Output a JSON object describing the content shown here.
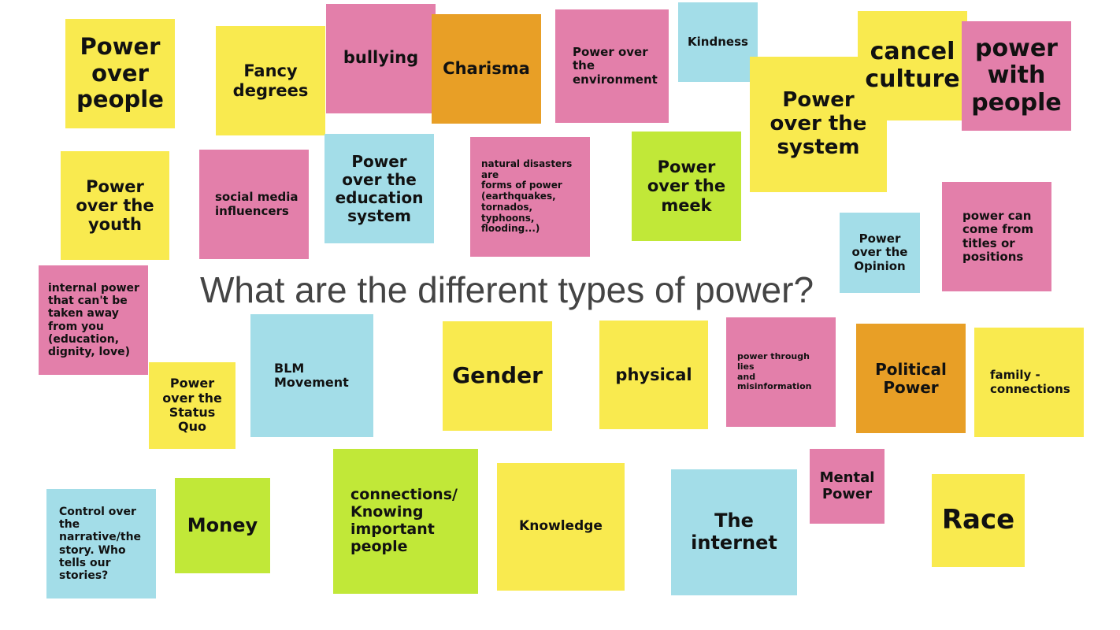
{
  "title": "What are the different types of power?",
  "colors": {
    "yellow": "#f9ea4f",
    "pink": "#e37faa",
    "blue": "#a3dde8",
    "green": "#c1e838",
    "orange": "#e89f26",
    "title_text": "#444444"
  },
  "notes": [
    {
      "text": "Power\nover\npeople",
      "color": "yellow"
    },
    {
      "text": "Fancy\ndegrees",
      "color": "yellow"
    },
    {
      "text": "bullying",
      "color": "pink"
    },
    {
      "text": "Charisma",
      "color": "orange"
    },
    {
      "text": "Power over\nthe\nenvironment",
      "color": "pink"
    },
    {
      "text": "Kindness",
      "color": "blue"
    },
    {
      "text": "Power\nover the\nsystem",
      "color": "yellow"
    },
    {
      "text": "cancel\nculture",
      "color": "yellow"
    },
    {
      "text": "power\nwith\npeople",
      "color": "pink"
    },
    {
      "text": "Power\nover the\nyouth",
      "color": "yellow"
    },
    {
      "text": "social media\ninfluencers",
      "color": "pink"
    },
    {
      "text": "Power\nover the\neducation\nsystem",
      "color": "blue"
    },
    {
      "text": "natural disasters are\nforms of power\n(earthquakes,\ntornados, typhoons,\nflooding...)",
      "color": "pink"
    },
    {
      "text": "Power\nover the\nmeek",
      "color": "green"
    },
    {
      "text": "Power\nover the\nOpinion",
      "color": "blue"
    },
    {
      "text": "power can\ncome from\ntitles or\npositions",
      "color": "pink"
    },
    {
      "text": "internal power\nthat can't be\ntaken away\nfrom you\n(education,\ndignity, love)",
      "color": "pink"
    },
    {
      "text": "Power\nover the\nStatus\nQuo",
      "color": "yellow"
    },
    {
      "text": "BLM\nMovement",
      "color": "blue"
    },
    {
      "text": "Gender",
      "color": "yellow"
    },
    {
      "text": "physical",
      "color": "yellow"
    },
    {
      "text": "power through lies\nand misinformation",
      "color": "pink"
    },
    {
      "text": "Political\nPower",
      "color": "orange"
    },
    {
      "text": "family -\nconnections",
      "color": "yellow"
    },
    {
      "text": "Control over\nthe\nnarrative/the\nstory. Who\ntells our\nstories?",
      "color": "blue"
    },
    {
      "text": "Money",
      "color": "green"
    },
    {
      "text": "connections/\nKnowing\nimportant\npeople",
      "color": "green"
    },
    {
      "text": "Knowledge",
      "color": "yellow"
    },
    {
      "text": "The\ninternet",
      "color": "blue"
    },
    {
      "text": "Mental\nPower",
      "color": "pink"
    },
    {
      "text": "Race",
      "color": "yellow"
    }
  ]
}
